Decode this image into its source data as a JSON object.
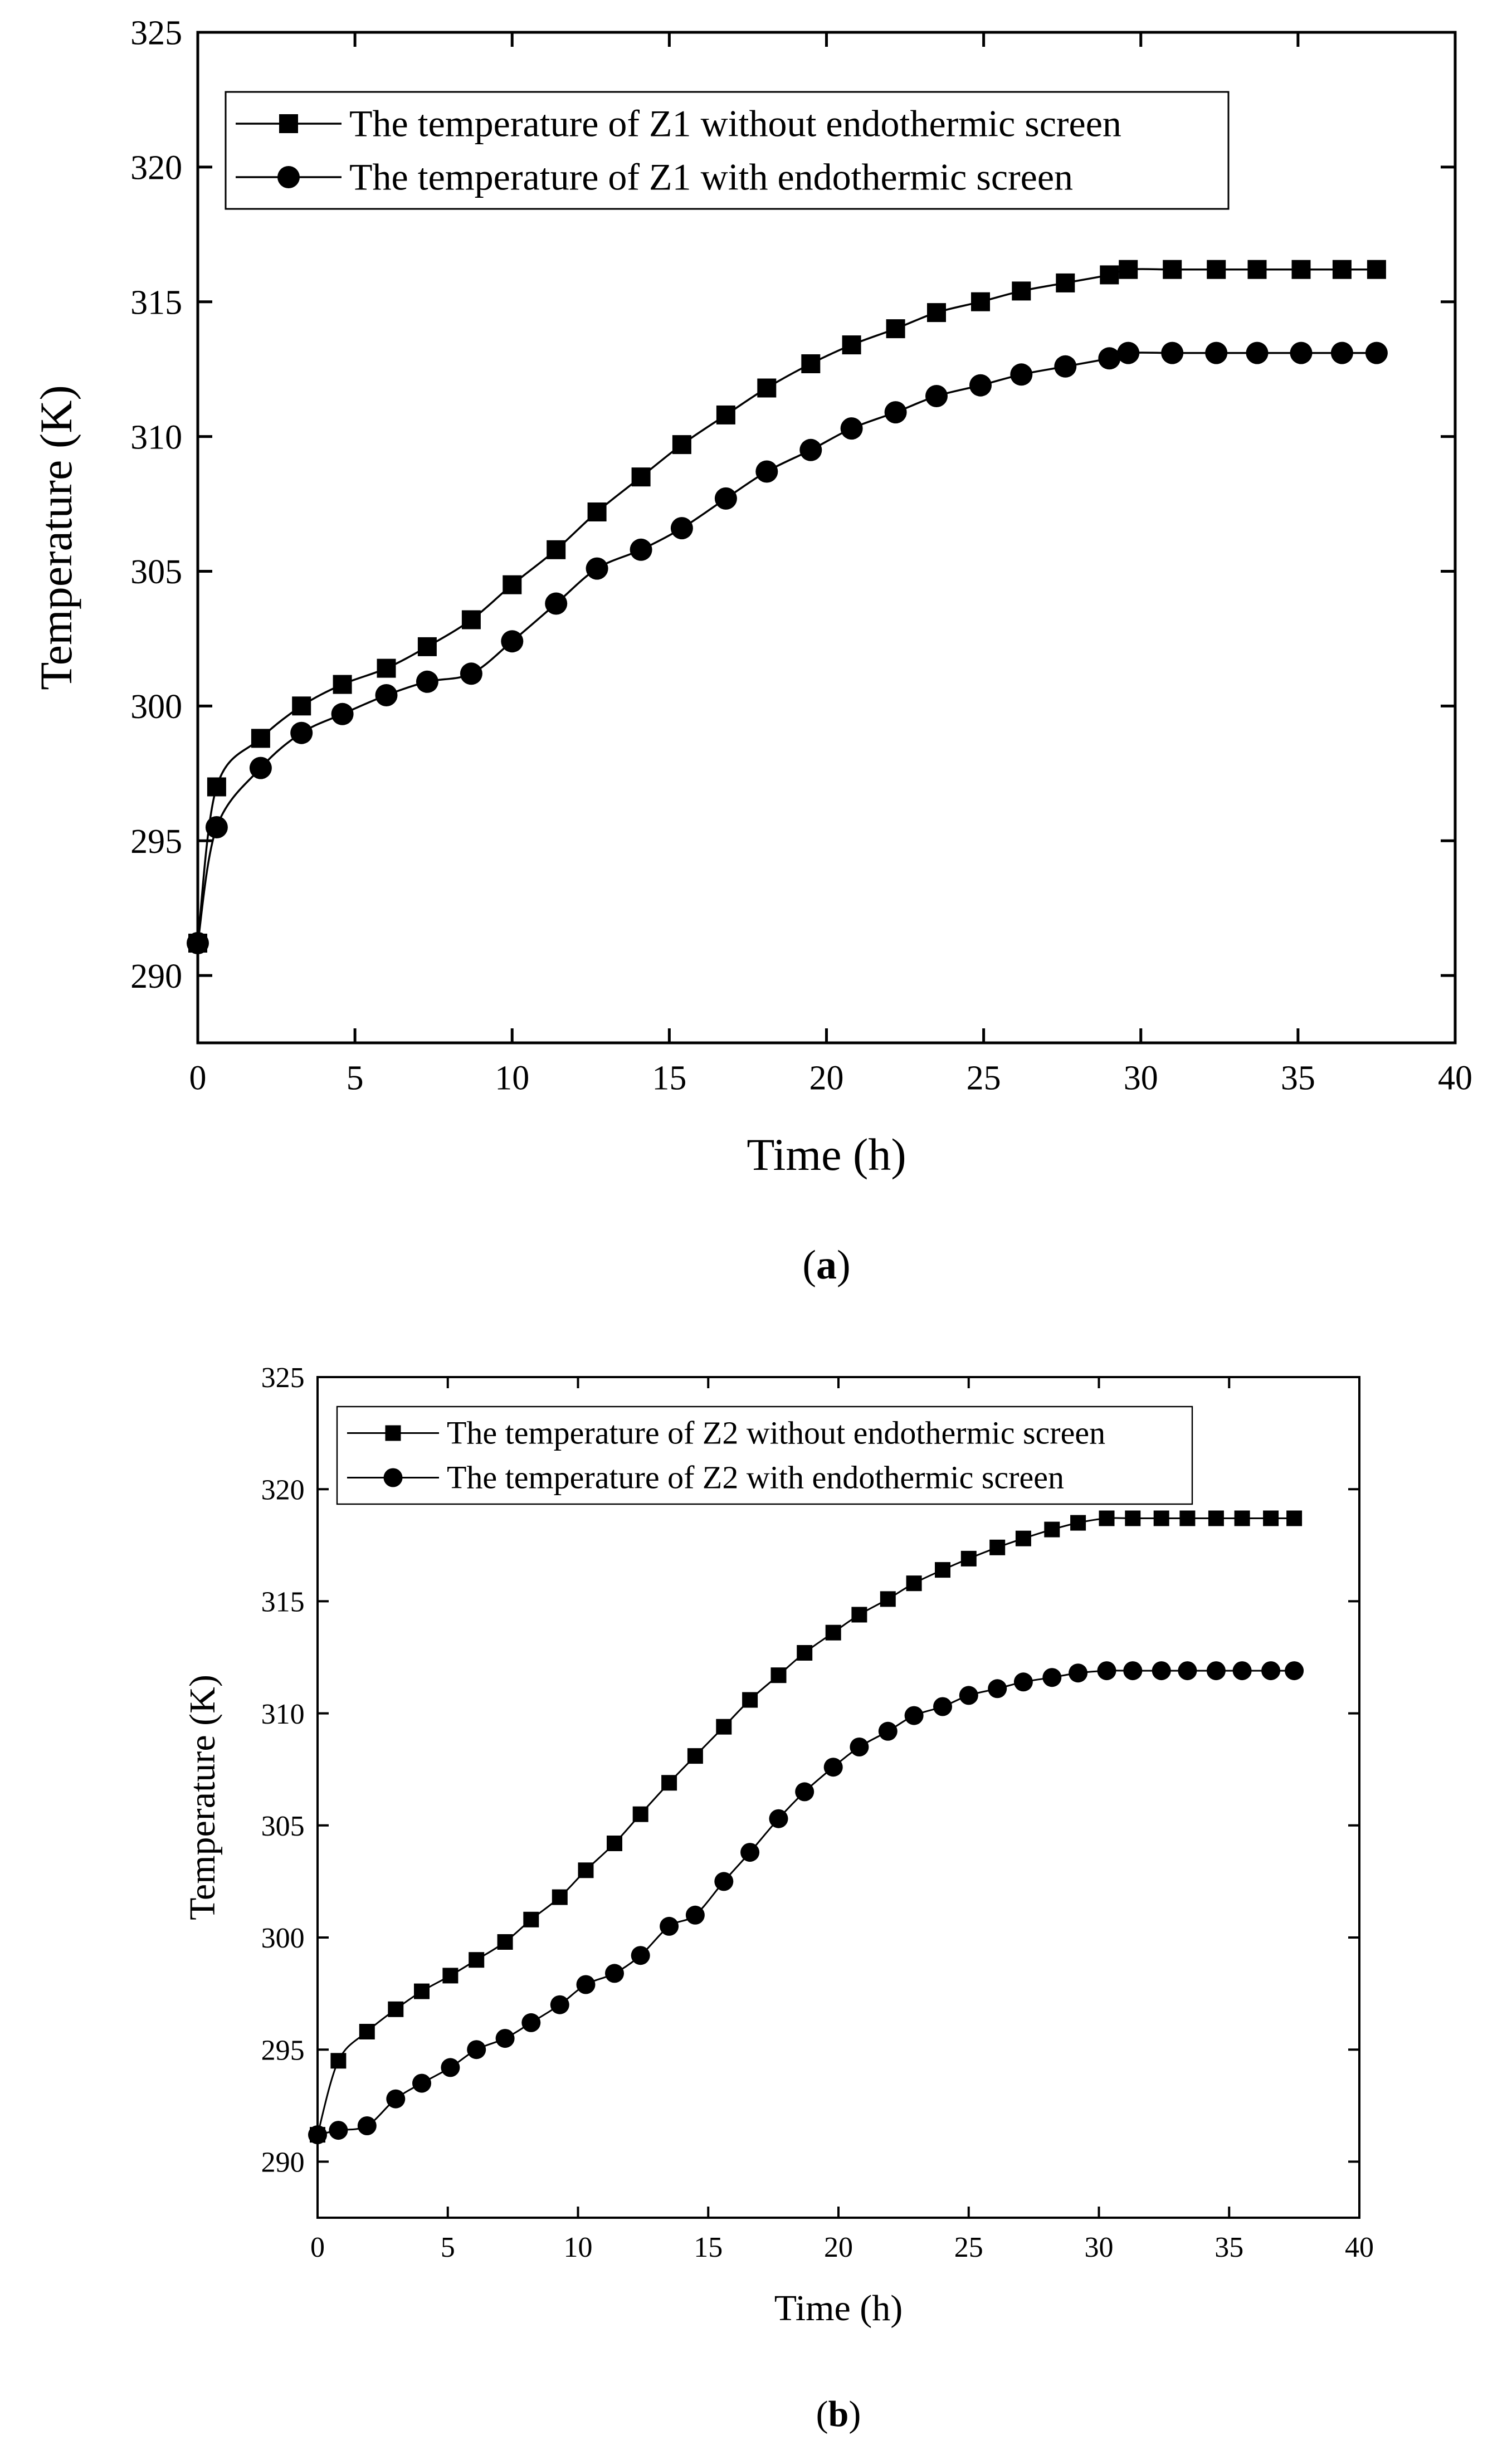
{
  "colors": {
    "ink": "#000000",
    "background": "#ffffff"
  },
  "chart_data": [
    {
      "type": "line",
      "panel_label": "(a)",
      "title": "",
      "xlabel": "Time (h)",
      "ylabel": "Temperature (K)",
      "xlim": [
        0,
        40
      ],
      "ylim": [
        287.5,
        325
      ],
      "xticks": [
        "0",
        "5",
        "10",
        "15",
        "20",
        "25",
        "30",
        "35",
        "40"
      ],
      "yticks": [
        "290",
        "295",
        "300",
        "305",
        "310",
        "315",
        "320",
        "325"
      ],
      "grid": false,
      "legend_position": "top-left",
      "x": [
        0.0,
        0.6,
        2.0,
        3.3,
        4.6,
        6.0,
        7.3,
        8.7,
        10.0,
        11.4,
        12.7,
        14.1,
        15.4,
        16.8,
        18.1,
        19.5,
        20.8,
        22.2,
        23.5,
        24.9,
        26.2,
        27.6,
        29.0,
        29.6,
        31.0,
        32.4,
        33.7,
        35.1,
        36.4,
        37.5
      ],
      "series": [
        {
          "name": "The temperature of Z1 without endothermic screen",
          "marker": "square",
          "values": [
            291.2,
            297.0,
            298.8,
            300.0,
            300.8,
            301.4,
            302.2,
            303.2,
            304.5,
            305.8,
            307.2,
            308.5,
            309.7,
            310.8,
            311.8,
            312.7,
            313.4,
            314.0,
            314.6,
            315.0,
            315.4,
            315.7,
            316.0,
            316.2,
            316.2,
            316.2,
            316.2,
            316.2,
            316.2,
            316.2
          ]
        },
        {
          "name": "The temperature of Z1 with endothermic screen",
          "marker": "circle",
          "values": [
            291.2,
            295.5,
            297.7,
            299.0,
            299.7,
            300.4,
            300.9,
            301.2,
            302.4,
            303.8,
            305.1,
            305.8,
            306.6,
            307.7,
            308.7,
            309.5,
            310.3,
            310.9,
            311.5,
            311.9,
            312.3,
            312.6,
            312.9,
            313.1,
            313.1,
            313.1,
            313.1,
            313.1,
            313.1,
            313.1
          ]
        }
      ]
    },
    {
      "type": "line",
      "panel_label": "(b)",
      "title": "",
      "xlabel": "Time (h)",
      "ylabel": "Temperature (K)",
      "xlim": [
        0,
        40
      ],
      "ylim": [
        287.5,
        325
      ],
      "xticks": [
        "0",
        "5",
        "10",
        "15",
        "20",
        "25",
        "30",
        "35",
        "40"
      ],
      "yticks": [
        "290",
        "295",
        "300",
        "305",
        "310",
        "315",
        "320",
        "325"
      ],
      "grid": false,
      "legend_position": "top-left",
      "x": [
        0.0,
        0.8,
        1.9,
        3.0,
        4.0,
        5.1,
        6.1,
        7.2,
        8.2,
        9.3,
        10.3,
        11.4,
        12.4,
        13.5,
        14.5,
        15.6,
        16.6,
        17.7,
        18.7,
        19.8,
        20.8,
        21.9,
        22.9,
        24.0,
        25.0,
        26.1,
        27.1,
        28.2,
        29.2,
        30.3,
        31.3,
        32.4,
        33.4,
        34.5,
        35.5,
        36.6,
        37.5
      ],
      "series": [
        {
          "name": "The temperature of Z2 without endothermic screen",
          "marker": "square",
          "values": [
            291.2,
            294.5,
            295.8,
            296.8,
            297.6,
            298.3,
            299.0,
            299.8,
            300.8,
            301.8,
            303.0,
            304.2,
            305.5,
            306.9,
            308.1,
            309.4,
            310.6,
            311.7,
            312.7,
            313.6,
            314.4,
            315.1,
            315.8,
            316.4,
            316.9,
            317.4,
            317.8,
            318.2,
            318.5,
            318.7,
            318.7,
            318.7,
            318.7,
            318.7,
            318.7,
            318.7,
            318.7
          ]
        },
        {
          "name": "The temperature of Z2 with endothermic screen",
          "marker": "circle",
          "values": [
            291.2,
            291.4,
            291.6,
            292.8,
            293.5,
            294.2,
            295.0,
            295.5,
            296.2,
            297.0,
            297.9,
            298.4,
            299.2,
            300.5,
            301.0,
            302.5,
            303.8,
            305.3,
            306.5,
            307.6,
            308.5,
            309.2,
            309.9,
            310.3,
            310.8,
            311.1,
            311.4,
            311.6,
            311.8,
            311.9,
            311.9,
            311.9,
            311.9,
            311.9,
            311.9,
            311.9,
            311.9
          ]
        }
      ]
    }
  ]
}
